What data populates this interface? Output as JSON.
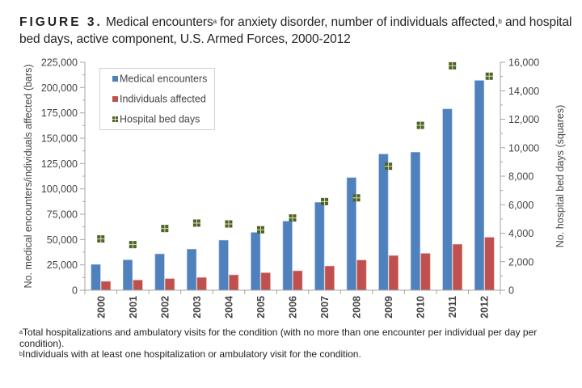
{
  "title": {
    "figure_label": "FIGURE 3.",
    "text_part1": "Medical encounters",
    "sup_a": "a",
    "text_part2": " for anxiety disorder, number of individuals affected,",
    "sup_b": "b",
    "text_part3": " and hospital bed days, active component, U.S. Armed Forces, 2000-2012"
  },
  "footnotes": [
    {
      "marker": "a",
      "text": "Total hospitalizations and ambulatory visits for the condition (with no more than one encounter per individual per day per condition)."
    },
    {
      "marker": "b",
      "text": "Individuals with at least one hospitalization or ambulatory visit for the condition."
    }
  ],
  "colors": {
    "medical_encounters": "#4f81bd",
    "individuals_affected": "#c0504d",
    "hospital_bed_days": "#4f6228",
    "axis": "#a6a6a6"
  },
  "chart_data": {
    "type": "bar",
    "title": "Medical encounters for anxiety disorder, number of individuals affected, and hospital bed days, active component, U.S. Armed Forces, 2000-2012",
    "categories": [
      "2000",
      "2001",
      "2002",
      "2003",
      "2004",
      "2005",
      "2006",
      "2007",
      "2008",
      "2009",
      "2010",
      "2011",
      "2012"
    ],
    "series": [
      {
        "name": "Medical encounters",
        "axis": "left",
        "mark": "bar",
        "values": [
          25400,
          29900,
          35800,
          40500,
          49300,
          57000,
          68100,
          86700,
          111100,
          134400,
          136200,
          178900,
          207000
        ]
      },
      {
        "name": "Individuals affected",
        "axis": "left",
        "mark": "bar",
        "values": [
          8700,
          10000,
          11400,
          12500,
          15100,
          17200,
          19100,
          23800,
          29700,
          34200,
          36300,
          45300,
          52200
        ]
      },
      {
        "name": "Hospital bed days",
        "axis": "right",
        "mark": "square",
        "values": [
          3600,
          3200,
          4330,
          4710,
          4650,
          4240,
          5070,
          6220,
          6480,
          8700,
          11570,
          15750,
          15020
        ]
      }
    ],
    "ylabel": "No. medical encounters/individuals affected (bars)",
    "ylim": [
      0,
      225000
    ],
    "yticks": [
      0,
      25000,
      50000,
      75000,
      100000,
      125000,
      150000,
      175000,
      200000,
      225000
    ],
    "ytick_labels": [
      "0",
      "25,000",
      "50,000",
      "75,000",
      "100,000",
      "125,000",
      "150,000",
      "175,000",
      "200,000",
      "225,000"
    ],
    "y2label": "No. hospital bed days (squares)",
    "y2lim": [
      0,
      16000
    ],
    "y2ticks": [
      0,
      2000,
      4000,
      6000,
      8000,
      10000,
      12000,
      14000,
      16000
    ],
    "y2tick_labels": [
      "0",
      "2,000",
      "4,000",
      "6,000",
      "8,000",
      "10,000",
      "12,000",
      "14,000",
      "16,000"
    ],
    "xlabel": "",
    "grid": false,
    "legend": {
      "placement": "top-left",
      "entries": [
        "Medical encounters",
        "Individuals affected",
        "Hospital bed days"
      ]
    }
  }
}
